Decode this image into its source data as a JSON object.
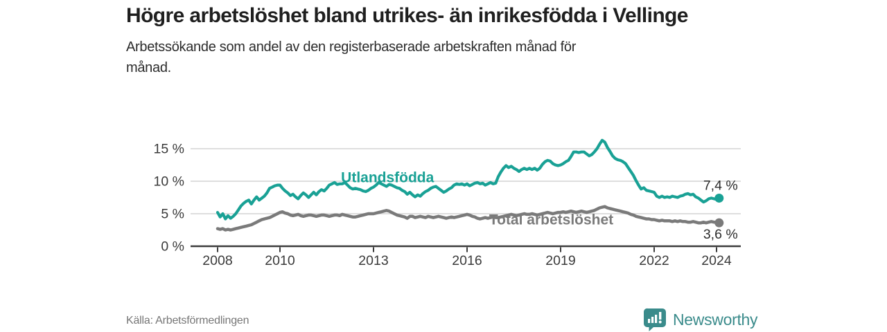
{
  "header": {
    "title": "Högre arbetslöshet bland utrikes- än inrikesfödda i Vellinge",
    "subtitle": "Arbetssökande som andel av den registerbaserade arbetskraften månad för månad."
  },
  "footer": {
    "source": "Källa: Arbetsförmedlingen",
    "brand": "Newsworthy"
  },
  "colors": {
    "foreign_born_line": "#19a195",
    "total_line": "#7a7a7a",
    "axis": "#3b3b3b",
    "gridline": "#d9d9d9",
    "value_label": "#2b2b2b",
    "brand_teal": "#3a8b8b",
    "title_text": "#1f1f1f",
    "source_text": "#767676"
  },
  "chart_data": {
    "type": "line",
    "title": "Högre arbetslöshet bland utrikes- än inrikesfödda i Vellinge",
    "subtitle": "Arbetssökande som andel av den registerbaserade arbetskraften månad för månad.",
    "x_start": "2008-01",
    "x_interval": "monthly",
    "x_ticks": [
      2008,
      2010,
      2013,
      2016,
      2019,
      2022,
      2024
    ],
    "y_ticks": [
      0,
      5,
      10,
      15
    ],
    "y_tick_suffix": " %",
    "ylim": [
      0,
      17.5
    ],
    "xlim": [
      2007.1,
      2024.9
    ],
    "grid": "horizontal",
    "legend_position": "inline-labels",
    "series": [
      {
        "name": "Utlandsfödda",
        "color": "#19a195",
        "end_value": 7.4,
        "end_label": "7,4 %",
        "label_anchor": {
          "year": 2013.45,
          "value": 10.6
        },
        "values": [
          5.2,
          4.5,
          5.0,
          4.2,
          4.7,
          4.3,
          4.6,
          5.0,
          5.6,
          6.2,
          6.6,
          6.9,
          7.1,
          6.5,
          7.1,
          7.6,
          7.1,
          7.4,
          7.7,
          8.2,
          8.9,
          9.1,
          9.3,
          9.4,
          9.4,
          8.9,
          8.5,
          8.2,
          7.8,
          8.0,
          7.6,
          7.3,
          7.8,
          8.2,
          7.9,
          7.5,
          7.9,
          8.3,
          7.9,
          8.4,
          8.7,
          8.5,
          8.9,
          9.4,
          9.6,
          9.8,
          9.5,
          9.6,
          9.6,
          9.8,
          9.4,
          9.0,
          8.8,
          8.9,
          8.8,
          8.7,
          8.5,
          8.4,
          8.6,
          8.9,
          9.1,
          9.4,
          9.8,
          9.6,
          9.4,
          9.2,
          9.5,
          9.4,
          9.2,
          9.0,
          8.9,
          8.6,
          8.4,
          8.0,
          8.3,
          7.9,
          7.6,
          7.9,
          7.7,
          8.1,
          8.4,
          8.6,
          8.9,
          9.1,
          9.2,
          8.9,
          8.6,
          8.3,
          8.5,
          8.8,
          9.0,
          9.4,
          9.6,
          9.5,
          9.6,
          9.4,
          9.6,
          9.3,
          9.5,
          9.7,
          9.8,
          9.6,
          9.7,
          9.4,
          9.6,
          9.8,
          9.6,
          9.7,
          10.7,
          11.4,
          12.0,
          12.4,
          12.1,
          12.3,
          12.0,
          11.8,
          11.5,
          11.8,
          12.0,
          11.8,
          12.0,
          11.8,
          12.0,
          11.7,
          12.0,
          12.6,
          13.0,
          13.2,
          13.1,
          12.7,
          12.5,
          12.4,
          12.5,
          12.7,
          13.0,
          13.2,
          13.8,
          14.5,
          14.5,
          14.4,
          14.5,
          14.5,
          14.2,
          13.9,
          14.1,
          14.5,
          15.0,
          15.7,
          16.3,
          16.0,
          15.2,
          14.6,
          13.9,
          13.5,
          13.3,
          13.2,
          13.0,
          12.7,
          12.1,
          11.5,
          10.9,
          10.1,
          9.4,
          8.8,
          9.0,
          8.6,
          8.5,
          8.4,
          8.3,
          7.7,
          7.5,
          7.7,
          7.5,
          7.6,
          7.5,
          7.7,
          7.6,
          7.5,
          7.7,
          7.8,
          8.0,
          8.1,
          7.9,
          8.0,
          7.6,
          7.4,
          7.1,
          6.8,
          7.0,
          7.3,
          7.4,
          7.3,
          7.2,
          7.4
        ]
      },
      {
        "name": "Total arbetslöshet",
        "color": "#7a7a7a",
        "end_value": 3.6,
        "end_label": "3,6 %",
        "label_anchor": {
          "year": 2018.7,
          "value": 4.1
        },
        "values": [
          2.7,
          2.6,
          2.7,
          2.5,
          2.6,
          2.5,
          2.6,
          2.7,
          2.8,
          2.9,
          3.0,
          3.1,
          3.2,
          3.3,
          3.5,
          3.7,
          3.9,
          4.1,
          4.2,
          4.3,
          4.4,
          4.6,
          4.8,
          5.0,
          5.2,
          5.3,
          5.1,
          5.0,
          4.8,
          4.7,
          4.8,
          4.9,
          4.7,
          4.6,
          4.7,
          4.8,
          4.8,
          4.7,
          4.6,
          4.7,
          4.8,
          4.8,
          4.7,
          4.6,
          4.7,
          4.8,
          4.8,
          4.7,
          4.9,
          4.8,
          4.7,
          4.6,
          4.5,
          4.5,
          4.6,
          4.7,
          4.8,
          4.9,
          5.0,
          5.0,
          5.0,
          5.1,
          5.2,
          5.3,
          5.4,
          5.5,
          5.4,
          5.2,
          5.0,
          4.8,
          4.7,
          4.6,
          4.5,
          4.3,
          4.6,
          4.6,
          4.4,
          4.5,
          4.6,
          4.5,
          4.4,
          4.6,
          4.5,
          4.4,
          4.5,
          4.6,
          4.5,
          4.4,
          4.3,
          4.4,
          4.5,
          4.4,
          4.5,
          4.6,
          4.7,
          4.8,
          4.9,
          4.8,
          4.6,
          4.5,
          4.3,
          4.2,
          4.3,
          4.4,
          4.3,
          4.4,
          4.5,
          4.4,
          4.4,
          4.5,
          4.6,
          4.7,
          4.8,
          4.9,
          4.8,
          4.7,
          4.8,
          4.9,
          5.0,
          4.9,
          4.9,
          5.0,
          4.9,
          4.8,
          4.9,
          5.0,
          5.1,
          5.2,
          5.1,
          5.0,
          5.1,
          5.2,
          5.2,
          5.3,
          5.2,
          5.3,
          5.4,
          5.3,
          5.2,
          5.3,
          5.4,
          5.3,
          5.2,
          5.3,
          5.4,
          5.5,
          5.7,
          5.9,
          6.0,
          6.1,
          5.9,
          5.8,
          5.7,
          5.6,
          5.5,
          5.4,
          5.3,
          5.2,
          5.1,
          4.9,
          4.8,
          4.6,
          4.5,
          4.4,
          4.3,
          4.2,
          4.2,
          4.1,
          4.1,
          4.0,
          3.9,
          4.0,
          3.9,
          3.9,
          3.9,
          3.8,
          3.9,
          3.8,
          3.9,
          3.8,
          3.8,
          3.7,
          3.7,
          3.8,
          3.7,
          3.6,
          3.6,
          3.7,
          3.6,
          3.7,
          3.8,
          3.7,
          3.7,
          3.6
        ]
      }
    ]
  }
}
